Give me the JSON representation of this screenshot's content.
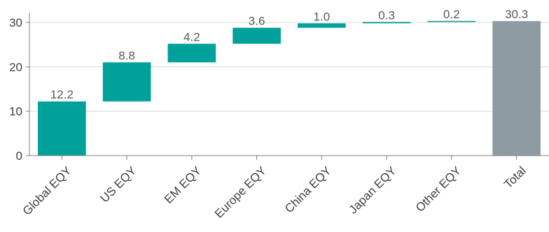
{
  "chart_data": {
    "type": "bar",
    "subtype": "waterfall",
    "title": "",
    "xlabel": "",
    "ylabel": "",
    "ylim": [
      0,
      33
    ],
    "yticks": [
      0,
      10,
      20,
      30
    ],
    "grid": true,
    "categories": [
      "Global EQY",
      "US EQY",
      "EM EQY",
      "Europe EQY",
      "China EQY",
      "Japan EQY",
      "Other EQY",
      "Total"
    ],
    "values": [
      12.2,
      8.8,
      4.2,
      3.6,
      1.0,
      0.3,
      0.2,
      30.3
    ],
    "labels": [
      "12.2",
      "8.8",
      "4.2",
      "3.6",
      "1.0",
      "0.3",
      "0.2",
      "30.3"
    ],
    "is_total": [
      false,
      false,
      false,
      false,
      false,
      false,
      false,
      true
    ],
    "colors": {
      "increase": "#00a19b",
      "total": "#8f9ba2",
      "grid": "#d9d9d9",
      "axis": "#7f7f7f"
    }
  }
}
